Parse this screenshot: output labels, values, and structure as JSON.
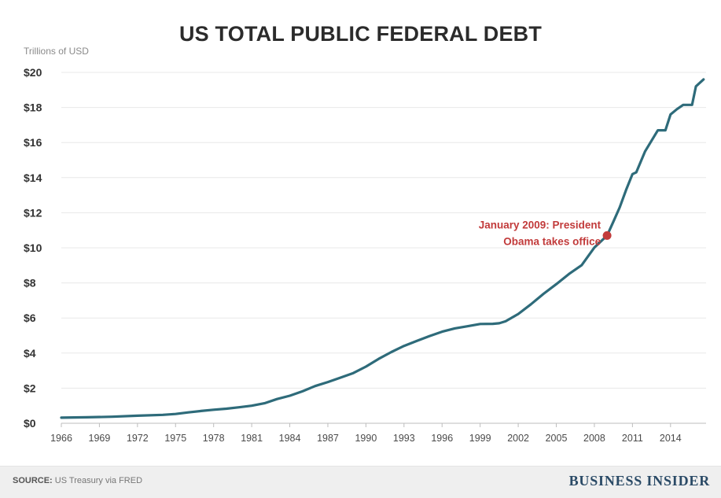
{
  "chart_data": {
    "type": "line",
    "title": "US TOTAL PUBLIC FEDERAL DEBT",
    "ylabel": "Trillions of USD",
    "xlabel": "",
    "xlim": [
      1966,
      2016.8
    ],
    "ylim": [
      0,
      20
    ],
    "x_ticks": [
      1966,
      1969,
      1972,
      1975,
      1978,
      1981,
      1984,
      1987,
      1990,
      1993,
      1996,
      1999,
      2002,
      2005,
      2008,
      2011,
      2014
    ],
    "y_ticks": [
      0,
      2,
      4,
      6,
      8,
      10,
      12,
      14,
      16,
      18,
      20
    ],
    "y_tick_labels": [
      "$0",
      "$2",
      "$4",
      "$6",
      "$8",
      "$10",
      "$12",
      "$14",
      "$16",
      "$18",
      "$20"
    ],
    "grid": true,
    "series": [
      {
        "color": "#2e6b7a",
        "points": [
          [
            1966,
            0.32
          ],
          [
            1968,
            0.34
          ],
          [
            1970,
            0.37
          ],
          [
            1972,
            0.43
          ],
          [
            1974,
            0.48
          ],
          [
            1975,
            0.53
          ],
          [
            1976,
            0.62
          ],
          [
            1977,
            0.7
          ],
          [
            1978,
            0.77
          ],
          [
            1979,
            0.83
          ],
          [
            1980,
            0.91
          ],
          [
            1981,
            1.0
          ],
          [
            1982,
            1.14
          ],
          [
            1983,
            1.38
          ],
          [
            1984,
            1.57
          ],
          [
            1985,
            1.82
          ],
          [
            1986,
            2.12
          ],
          [
            1987,
            2.35
          ],
          [
            1988,
            2.6
          ],
          [
            1989,
            2.86
          ],
          [
            1990,
            3.23
          ],
          [
            1991,
            3.67
          ],
          [
            1992,
            4.06
          ],
          [
            1993,
            4.41
          ],
          [
            1994,
            4.69
          ],
          [
            1995,
            4.97
          ],
          [
            1996,
            5.22
          ],
          [
            1997,
            5.41
          ],
          [
            1998,
            5.53
          ],
          [
            1999,
            5.66
          ],
          [
            2000,
            5.67
          ],
          [
            2000.5,
            5.7
          ],
          [
            2001,
            5.81
          ],
          [
            2002,
            6.23
          ],
          [
            2003,
            6.78
          ],
          [
            2004,
            7.38
          ],
          [
            2005,
            7.93
          ],
          [
            2006,
            8.51
          ],
          [
            2007,
            9.01
          ],
          [
            2008,
            10.02
          ],
          [
            2009,
            10.7
          ],
          [
            2009.5,
            11.5
          ],
          [
            2010,
            12.31
          ],
          [
            2010.5,
            13.3
          ],
          [
            2011,
            14.2
          ],
          [
            2011.3,
            14.3
          ],
          [
            2012,
            15.5
          ],
          [
            2013,
            16.7
          ],
          [
            2013.6,
            16.7
          ],
          [
            2014,
            17.6
          ],
          [
            2014.5,
            17.9
          ],
          [
            2015,
            18.15
          ],
          [
            2015.7,
            18.15
          ],
          [
            2016,
            19.2
          ],
          [
            2016.6,
            19.6
          ]
        ]
      }
    ],
    "annotations": [
      {
        "x": 2009,
        "y": 10.7,
        "text_lines": [
          "January 2009: President",
          "Obama takes office"
        ],
        "color": "#c23b3b"
      }
    ]
  },
  "footer": {
    "source_label": "SOURCE:",
    "source_text": " US Treasury via FRED",
    "brand": "BUSINESS INSIDER"
  }
}
